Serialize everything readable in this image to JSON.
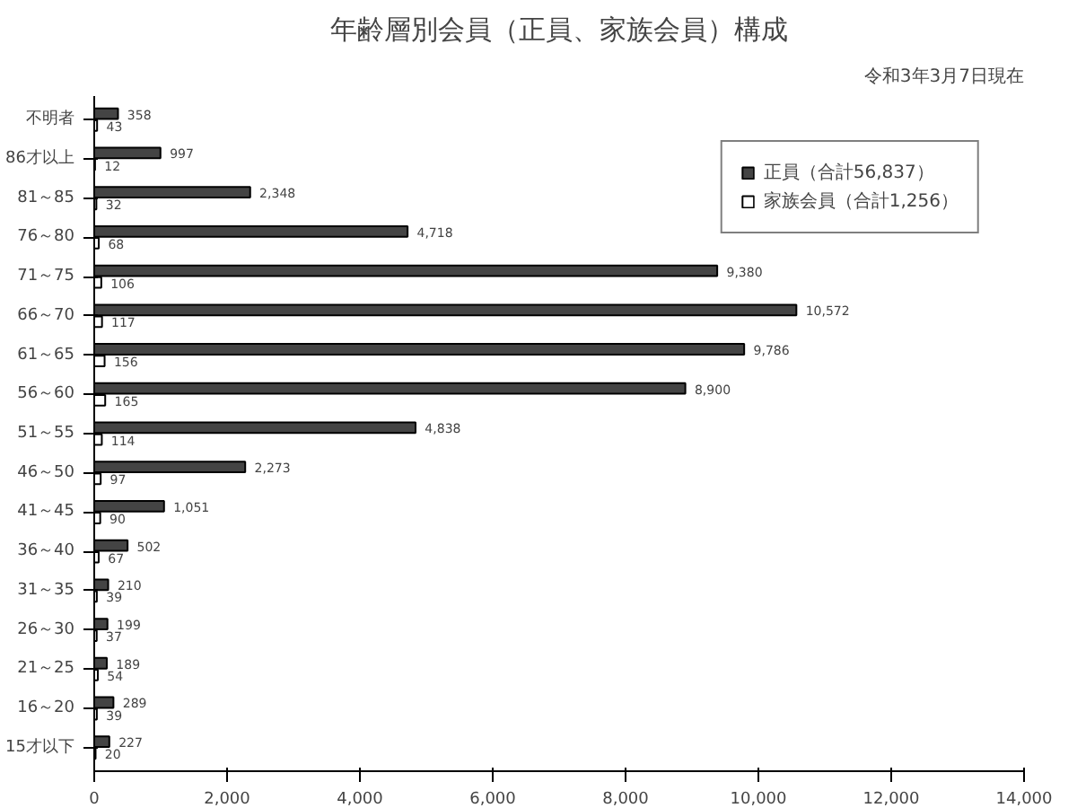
{
  "chart_data": {
    "type": "bar",
    "orientation": "horizontal",
    "title": "年齢層別会員（正員、家族会員）構成",
    "annotations": [
      "令和3年3月7日現在"
    ],
    "categories": [
      "不明者",
      "86才以上",
      "81～85",
      "76～80",
      "71～75",
      "66～70",
      "61～65",
      "56～60",
      "51～55",
      "46～50",
      "41～45",
      "36～40",
      "31～35",
      "26～30",
      "21～25",
      "16～20",
      "15才以下"
    ],
    "series": [
      {
        "name": "正員（合計56,837）",
        "color": "#444444",
        "values": [
          358,
          997,
          2348,
          4718,
          9380,
          10572,
          9786,
          8900,
          4838,
          2273,
          1051,
          502,
          210,
          199,
          189,
          289,
          227
        ],
        "value_labels": [
          "358",
          "997",
          "2,348",
          "4,718",
          "9,380",
          "10,572",
          "9,786",
          "8,900",
          "4,838",
          "2,273",
          "1,051",
          "502",
          "210",
          "199",
          "189",
          "289",
          "227"
        ]
      },
      {
        "name": "家族会員（合計1,256）",
        "color": "#ffffff",
        "values": [
          43,
          12,
          32,
          68,
          106,
          117,
          156,
          165,
          114,
          97,
          90,
          67,
          39,
          37,
          54,
          39,
          20
        ],
        "value_labels": [
          "43",
          "12",
          "32",
          "68",
          "106",
          "117",
          "156",
          "165",
          "114",
          "97",
          "90",
          "67",
          "39",
          "37",
          "54",
          "39",
          "20"
        ]
      }
    ],
    "xlim": [
      0,
      14000
    ],
    "xticks": [
      0,
      {
        "value": 2000,
        "label": "2,000"
      },
      {
        "value": 4000,
        "label": "4,000"
      },
      {
        "value": 6000,
        "label": "6,000"
      },
      {
        "value": 8000,
        "label": "8,000"
      },
      {
        "value": 10000,
        "label": "10,000"
      },
      {
        "value": 12000,
        "label": "12,000"
      },
      {
        "value": 14000,
        "label": "14,000"
      }
    ],
    "grid": false,
    "legend": "top right"
  }
}
